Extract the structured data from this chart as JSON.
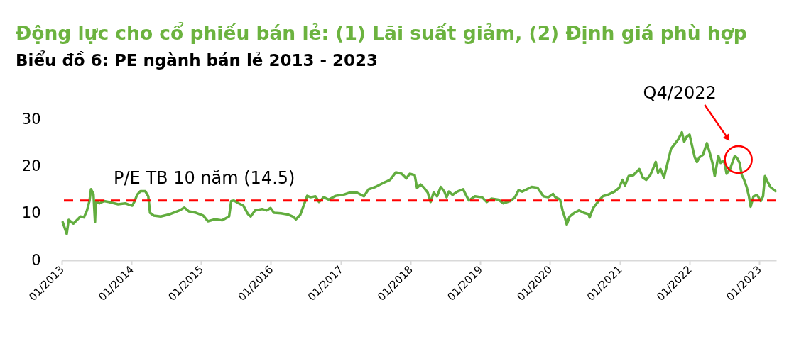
{
  "chart_data": {
    "type": "line",
    "title": "Động lực cho cổ phiếu bán lẻ: (1) Lãi suất giảm, (2) Định giá phù hợp",
    "subtitle": "Biểu đồ 6: PE ngành bán lẻ 2013 - 2023",
    "x": [
      "2013-01-06",
      "2013-01-27",
      "2013-02-06",
      "2013-03-03",
      "2013-04-09",
      "2013-04-27",
      "2013-05-13",
      "2013-05-26",
      "2013-06-03",
      "2013-06-16",
      "2013-06-24",
      "2013-06-28",
      "2013-07-17",
      "2013-08-11",
      "2013-09-04",
      "2013-10-23",
      "2013-11-29",
      "2014-01-05",
      "2014-01-18",
      "2014-01-30",
      "2014-02-17",
      "2014-03-14",
      "2014-03-30",
      "2014-04-08",
      "2014-04-27",
      "2014-06-03",
      "2014-07-22",
      "2014-09-10",
      "2014-10-04",
      "2014-10-29",
      "2014-12-05",
      "2015-01-11",
      "2015-02-05",
      "2015-03-14",
      "2015-04-20",
      "2015-05-27",
      "2015-06-07",
      "2015-06-21",
      "2015-07-17",
      "2015-08-10",
      "2015-09-03",
      "2015-09-17",
      "2015-10-10",
      "2015-11-16",
      "2015-12-09",
      "2015-12-30",
      "2016-01-17",
      "2016-02-23",
      "2016-04-01",
      "2016-04-25",
      "2016-05-11",
      "2016-06-02",
      "2016-06-20",
      "2016-07-09",
      "2016-07-27",
      "2016-08-21",
      "2016-09-09",
      "2016-10-04",
      "2016-10-29",
      "2016-12-05",
      "2017-01-11",
      "2017-02-18",
      "2017-03-26",
      "2017-05-02",
      "2017-05-27",
      "2017-07-02",
      "2017-08-09",
      "2017-09-16",
      "2017-10-16",
      "2017-11-16",
      "2017-12-10",
      "2017-12-28",
      "2018-01-23",
      "2018-02-04",
      "2018-02-23",
      "2018-03-13",
      "2018-04-01",
      "2018-04-16",
      "2018-05-02",
      "2018-05-20",
      "2018-06-08",
      "2018-06-27",
      "2018-07-09",
      "2018-07-21",
      "2018-08-09",
      "2018-09-03",
      "2018-10-03",
      "2018-10-22",
      "2018-11-03",
      "2018-12-04",
      "2019-01-10",
      "2019-02-04",
      "2019-02-28",
      "2019-04-06",
      "2019-05-01",
      "2019-06-08",
      "2019-07-02",
      "2019-07-21",
      "2019-08-08",
      "2019-09-02",
      "2019-09-27",
      "2019-10-28",
      "2019-11-28",
      "2019-12-23",
      "2020-01-17",
      "2020-01-29",
      "2020-02-23",
      "2020-03-07",
      "2020-03-19",
      "2020-03-29",
      "2020-04-13",
      "2020-05-08",
      "2020-06-02",
      "2020-06-26",
      "2020-07-21",
      "2020-07-27",
      "2020-08-14",
      "2020-09-08",
      "2020-10-03",
      "2020-10-28",
      "2020-12-04",
      "2020-12-28",
      "2021-01-15",
      "2021-01-28",
      "2021-02-16",
      "2021-03-13",
      "2021-04-13",
      "2021-05-01",
      "2021-05-19",
      "2021-06-09",
      "2021-06-25",
      "2021-07-08",
      "2021-07-20",
      "2021-08-02",
      "2021-08-20",
      "2021-09-08",
      "2021-09-26",
      "2021-10-15",
      "2021-11-03",
      "2021-11-22",
      "2021-12-04",
      "2021-12-16",
      "2022-01-01",
      "2022-01-15",
      "2022-01-28",
      "2022-02-09",
      "2022-02-22",
      "2022-03-12",
      "2022-04-02",
      "2022-04-18",
      "2022-05-01",
      "2022-05-13",
      "2022-06-01",
      "2022-06-13",
      "2022-07-01",
      "2022-07-14",
      "2022-08-01",
      "2022-08-26",
      "2022-09-07",
      "2022-09-20",
      "2022-10-02",
      "2022-10-14",
      "2022-10-27",
      "2022-11-08",
      "2022-11-17",
      "2022-12-02",
      "2022-12-21",
      "2023-01-09",
      "2023-01-21",
      "2023-01-31",
      "2023-02-15",
      "2023-02-28",
      "2023-03-27"
    ],
    "series": [
      {
        "color": "#62ad3f",
        "values": [
          8.1,
          5.6,
          8.6,
          7.8,
          9.3,
          9.1,
          10.6,
          12.6,
          15.1,
          14.1,
          8.1,
          12.6,
          12.1,
          12.6,
          12.4,
          11.9,
          12.1,
          11.6,
          12.6,
          13.9,
          14.7,
          14.7,
          13.6,
          10.1,
          9.5,
          9.3,
          9.8,
          10.6,
          11.2,
          10.4,
          10.1,
          9.5,
          8.3,
          8.7,
          8.5,
          9.3,
          12.6,
          12.7,
          12.1,
          11.6,
          9.8,
          9.3,
          10.6,
          10.9,
          10.6,
          11.1,
          10.1,
          10.0,
          9.7,
          9.3,
          8.7,
          9.6,
          11.6,
          13.7,
          13.4,
          13.6,
          12.4,
          13.4,
          12.9,
          13.7,
          13.9,
          14.4,
          14.4,
          13.6,
          15.1,
          15.6,
          16.4,
          17.1,
          18.7,
          18.4,
          17.4,
          18.4,
          18.1,
          15.4,
          16.1,
          15.4,
          14.4,
          12.4,
          14.4,
          13.6,
          15.6,
          14.6,
          13.4,
          14.6,
          13.9,
          14.6,
          15.1,
          13.6,
          12.7,
          13.6,
          13.4,
          12.4,
          13.1,
          12.9,
          12.1,
          12.6,
          13.4,
          14.9,
          14.6,
          15.1,
          15.6,
          15.4,
          13.6,
          13.4,
          14.1,
          13.4,
          12.9,
          10.6,
          9.1,
          7.6,
          9.3,
          10.1,
          10.6,
          10.1,
          9.8,
          9.1,
          11.1,
          12.4,
          13.6,
          13.9,
          14.6,
          15.4,
          17.1,
          15.9,
          17.9,
          18.1,
          19.4,
          17.6,
          17.1,
          18.1,
          19.6,
          20.9,
          18.6,
          19.4,
          17.6,
          20.7,
          23.7,
          24.7,
          25.7,
          27.2,
          25.2,
          26.2,
          26.7,
          24.2,
          21.9,
          20.9,
          21.9,
          22.4,
          24.9,
          22.7,
          20.7,
          17.9,
          22.2,
          20.7,
          21.2,
          18.4,
          19.4,
          22.2,
          21.7,
          20.7,
          18.1,
          17.1,
          15.6,
          13.6,
          11.4,
          13.6,
          13.9,
          12.6,
          13.6,
          17.9,
          16.6,
          15.6,
          14.7
        ]
      }
    ],
    "xlim": [
      "2013-01-01",
      "2023-03-31"
    ],
    "xticks": [
      {
        "value": "2013-01-01",
        "label": "01/2013"
      },
      {
        "value": "2014-01-01",
        "label": "01/2014"
      },
      {
        "value": "2015-01-01",
        "label": "01/2015"
      },
      {
        "value": "2016-01-01",
        "label": "01/2016"
      },
      {
        "value": "2017-01-01",
        "label": "01/2017"
      },
      {
        "value": "2018-01-01",
        "label": "01/2018"
      },
      {
        "value": "2019-01-01",
        "label": "01/2019"
      },
      {
        "value": "2020-01-01",
        "label": "01/2020"
      },
      {
        "value": "2021-01-01",
        "label": "01/2021"
      },
      {
        "value": "2022-01-01",
        "label": "01/2022"
      },
      {
        "value": "2023-01-01",
        "label": "01/2023"
      }
    ],
    "ylim": [
      0,
      30
    ],
    "yticks": [
      0,
      10,
      20,
      30
    ],
    "marker": "none",
    "line_style": "solid",
    "ref_lines": [
      {
        "axis": "y",
        "value": 12.7,
        "label": "P/E TB 10 năm (14.5)",
        "color": "#ff0000",
        "line_style": "dashed"
      }
    ],
    "annotations": [
      "Q4/2022"
    ]
  }
}
